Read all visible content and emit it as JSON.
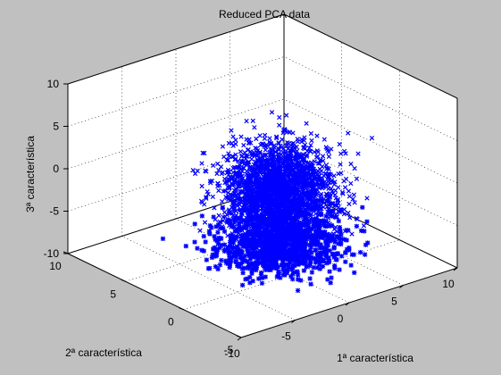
{
  "window": {
    "background": "#c0c0c0",
    "axes_background": "#ffffff"
  },
  "chart_data": {
    "type": "scatter",
    "title": "Reduced PCA data",
    "xlabel": "1ª característica",
    "ylabel": "2ª característica",
    "zlabel": "3ª característica",
    "xlim": [
      -10,
      10
    ],
    "ylim": [
      -5,
      10
    ],
    "zlim": [
      -10,
      10
    ],
    "xticks": [
      -10,
      -5,
      0,
      5,
      10
    ],
    "yticks": [
      -5,
      0,
      5,
      10
    ],
    "zticks": [
      -10,
      -5,
      0,
      5,
      10
    ],
    "xtick_labels": [
      "-10",
      "-5",
      "0",
      "5",
      "10"
    ],
    "ytick_labels": [
      "-5",
      "0",
      "5",
      "10"
    ],
    "ztick_labels": [
      "-10",
      "-5",
      "0",
      "5",
      "10"
    ],
    "grid": true,
    "box": true,
    "legend": "none",
    "marker_color": "#0000ff",
    "series": [
      {
        "marker": "x",
        "cluster": {
          "x_center": 1.0,
          "x_spread": 2.0,
          "y_center": 2.0,
          "y_spread": 1.5,
          "z_center": -1.8,
          "z_spread": 2.5,
          "z_range": [
            -6.5,
            4.5
          ],
          "count": 2400
        }
      },
      {
        "marker": "*",
        "cluster": {
          "x_center": 1.0,
          "x_spread": 2.2,
          "y_center": 2.0,
          "y_spread": 1.6,
          "z_center": -8.0,
          "z_spread": 1.3,
          "z_range": [
            -10,
            -5.5
          ],
          "count": 1200
        }
      }
    ]
  }
}
